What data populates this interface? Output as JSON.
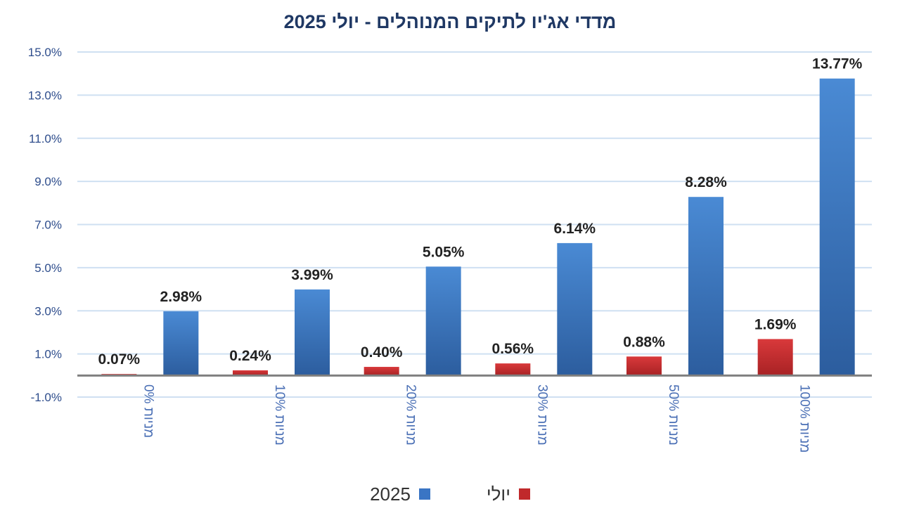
{
  "chart_data": {
    "type": "bar",
    "title": "מדדי אג'יו לתיקים המנוהלים  -  יולי 2025",
    "categories": [
      "0% מניות",
      "10% מניות",
      "20% מניות",
      "30% מניות",
      "50% מניות",
      "100% מניות"
    ],
    "series": [
      {
        "name": "יולי",
        "color": "#c0292b",
        "values": [
          0.07,
          0.24,
          0.4,
          0.56,
          0.88,
          1.69
        ]
      },
      {
        "name": "2025",
        "color": "#3a75c4",
        "values": [
          2.98,
          3.99,
          5.05,
          6.14,
          8.28,
          13.77
        ]
      }
    ],
    "data_labels": [
      [
        "0.07%",
        "0.24%",
        "0.40%",
        "0.56%",
        "0.88%",
        "1.69%"
      ],
      [
        "2.98%",
        "3.99%",
        "5.05%",
        "6.14%",
        "8.28%",
        "13.77%"
      ]
    ],
    "y_ticks": [
      15.0,
      13.0,
      11.0,
      9.0,
      7.0,
      5.0,
      3.0,
      1.0,
      -1.0
    ],
    "y_tick_labels": [
      "15.0%",
      "13.0%",
      "11.0%",
      "9.0%",
      "7.0%",
      "5.0%",
      "3.0%",
      "1.0%",
      "-1.0%"
    ],
    "ylim": [
      -1.0,
      15.0
    ],
    "grid": true,
    "legend_position": "bottom",
    "colors": {
      "title": "#1f3864",
      "tick_labels": "#2e4d8c",
      "category_labels": "#4a6fb5",
      "grid": "#cfe0f2",
      "axis": "#7f7f7f",
      "data_labels": "#222222"
    }
  }
}
